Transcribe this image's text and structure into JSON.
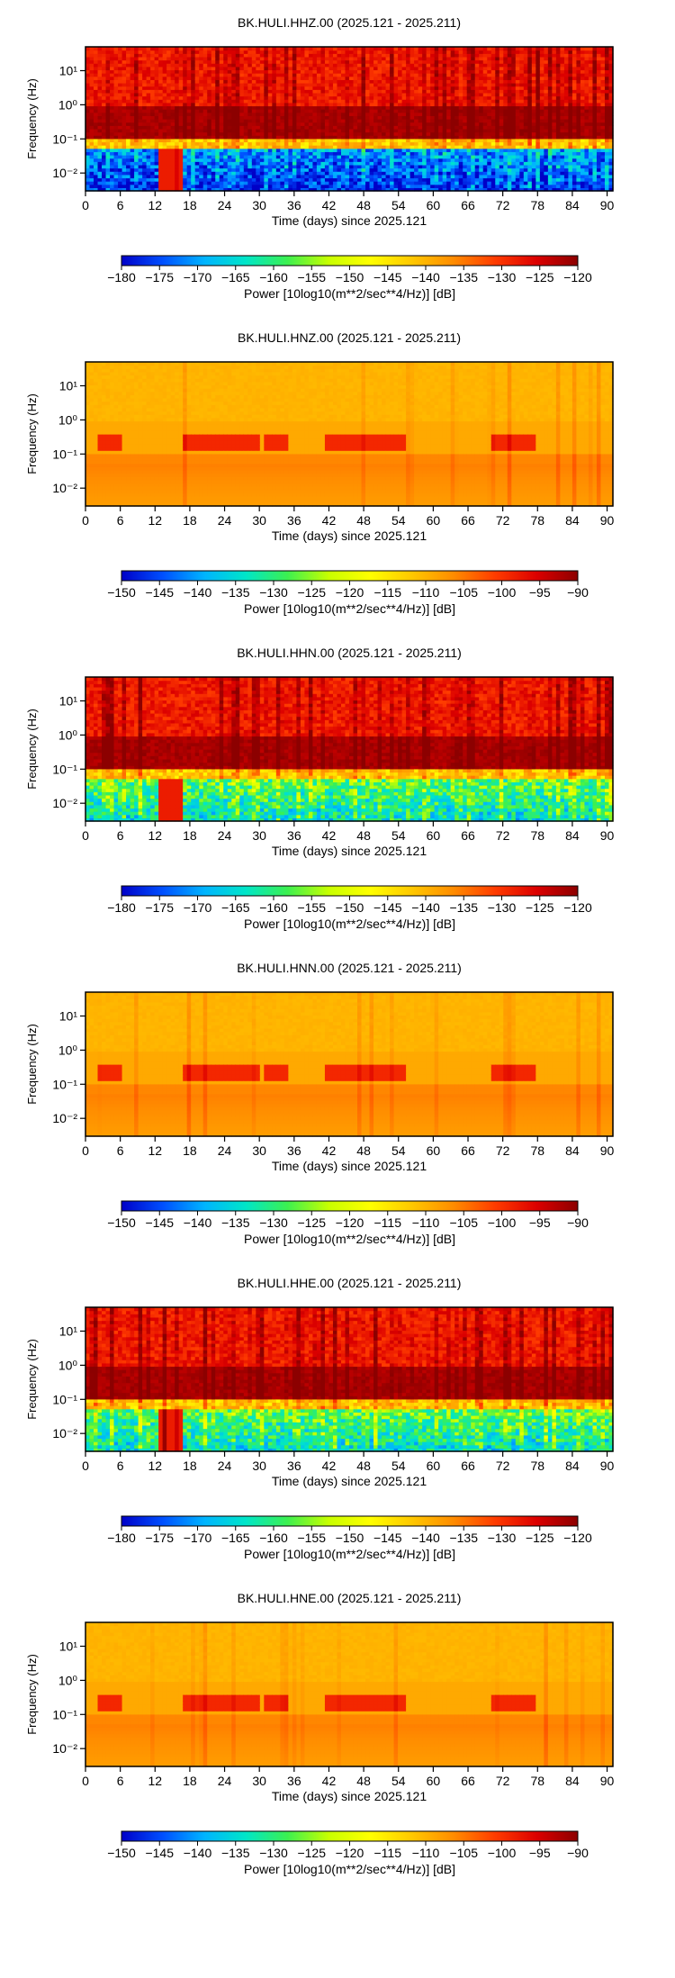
{
  "page": {
    "background": "#ffffff"
  },
  "colormap_stops": [
    "#0000c8",
    "#0050ff",
    "#00b4ff",
    "#00e6c8",
    "#3cf050",
    "#c8ff00",
    "#ffff00",
    "#ffc800",
    "#ff8c00",
    "#ff3c00",
    "#dc0000",
    "#8c0000"
  ],
  "chart_data": [
    {
      "type": "heatmap",
      "title": "BK.HULI.HHZ.00 (2025.121 - 2025.211)",
      "xlabel": "Time (days) since 2025.121",
      "ylabel": "Frequency (Hz)",
      "x_ticks": [
        "0",
        "6",
        "12",
        "18",
        "24",
        "30",
        "36",
        "42",
        "48",
        "54",
        "60",
        "66",
        "72",
        "78",
        "84",
        "90"
      ],
      "x_tick_values": [
        0,
        6,
        12,
        18,
        24,
        30,
        36,
        42,
        48,
        54,
        60,
        66,
        72,
        78,
        84,
        90
      ],
      "xlim": [
        0,
        91
      ],
      "y_scale": "log",
      "y_ticks": [
        "10¹",
        "10⁰",
        "10⁻¹",
        "10⁻²"
      ],
      "y_tick_values": [
        10,
        1,
        0.1,
        0.01
      ],
      "ylim": [
        0.003,
        50
      ],
      "colorbar": {
        "label": "Power [10log10(m**2/sec**4/Hz)] [dB]",
        "ticks": [
          "−180",
          "−175",
          "−170",
          "−165",
          "−160",
          "−155",
          "−150",
          "−145",
          "−140",
          "−135",
          "−130",
          "−125",
          "−120"
        ],
        "range": [
          -180,
          -120
        ]
      },
      "power_db_by_band": {
        "low_freq_below_0.05Hz": -178,
        "microseism_0.1_1Hz": -122,
        "high_freq_above_1Hz": -128
      },
      "style": "broadband"
    },
    {
      "type": "heatmap",
      "title": "BK.HULI.HNZ.00 (2025.121 - 2025.211)",
      "xlabel": "Time (days) since 2025.121",
      "ylabel": "Frequency (Hz)",
      "x_ticks": [
        "0",
        "6",
        "12",
        "18",
        "24",
        "30",
        "36",
        "42",
        "48",
        "54",
        "60",
        "66",
        "72",
        "78",
        "84",
        "90"
      ],
      "x_tick_values": [
        0,
        6,
        12,
        18,
        24,
        30,
        36,
        42,
        48,
        54,
        60,
        66,
        72,
        78,
        84,
        90
      ],
      "xlim": [
        0,
        91
      ],
      "y_scale": "log",
      "y_ticks": [
        "10¹",
        "10⁰",
        "10⁻¹",
        "10⁻²"
      ],
      "y_tick_values": [
        10,
        1,
        0.1,
        0.01
      ],
      "ylim": [
        0.003,
        50
      ],
      "colorbar": {
        "label": "Power [10log10(m**2/sec**4/Hz)] [dB]",
        "ticks": [
          "−150",
          "−145",
          "−140",
          "−135",
          "−130",
          "−125",
          "−120",
          "−115",
          "−110",
          "−105",
          "−100",
          "−95",
          "−90"
        ],
        "range": [
          -150,
          -90
        ]
      },
      "power_db_by_band": {
        "low_freq_below_0.05Hz": -108,
        "microseism_0.1_1Hz": -103,
        "high_freq_above_1Hz": -110
      },
      "style": "strong_motion"
    },
    {
      "type": "heatmap",
      "title": "BK.HULI.HHN.00 (2025.121 - 2025.211)",
      "xlabel": "Time (days) since 2025.121",
      "ylabel": "Frequency (Hz)",
      "x_ticks": [
        "0",
        "6",
        "12",
        "18",
        "24",
        "30",
        "36",
        "42",
        "48",
        "54",
        "60",
        "66",
        "72",
        "78",
        "84",
        "90"
      ],
      "x_tick_values": [
        0,
        6,
        12,
        18,
        24,
        30,
        36,
        42,
        48,
        54,
        60,
        66,
        72,
        78,
        84,
        90
      ],
      "xlim": [
        0,
        91
      ],
      "y_scale": "log",
      "y_ticks": [
        "10¹",
        "10⁰",
        "10⁻¹",
        "10⁻²"
      ],
      "y_tick_values": [
        10,
        1,
        0.1,
        0.01
      ],
      "ylim": [
        0.003,
        50
      ],
      "colorbar": {
        "label": "Power [10log10(m**2/sec**4/Hz)] [dB]",
        "ticks": [
          "−180",
          "−175",
          "−170",
          "−165",
          "−160",
          "−155",
          "−150",
          "−145",
          "−140",
          "−135",
          "−130",
          "−125",
          "−120"
        ],
        "range": [
          -180,
          -120
        ]
      },
      "power_db_by_band": {
        "low_freq_below_0.05Hz": -165,
        "microseism_0.1_1Hz": -122,
        "high_freq_above_1Hz": -128
      },
      "style": "broadband"
    },
    {
      "type": "heatmap",
      "title": "BK.HULI.HNN.00 (2025.121 - 2025.211)",
      "xlabel": "Time (days) since 2025.121",
      "ylabel": "Frequency (Hz)",
      "x_ticks": [
        "0",
        "6",
        "12",
        "18",
        "24",
        "30",
        "36",
        "42",
        "48",
        "54",
        "60",
        "66",
        "72",
        "78",
        "84",
        "90"
      ],
      "x_tick_values": [
        0,
        6,
        12,
        18,
        24,
        30,
        36,
        42,
        48,
        54,
        60,
        66,
        72,
        78,
        84,
        90
      ],
      "xlim": [
        0,
        91
      ],
      "y_scale": "log",
      "y_ticks": [
        "10¹",
        "10⁰",
        "10⁻¹",
        "10⁻²"
      ],
      "y_tick_values": [
        10,
        1,
        0.1,
        0.01
      ],
      "ylim": [
        0.003,
        50
      ],
      "colorbar": {
        "label": "Power [10log10(m**2/sec**4/Hz)] [dB]",
        "ticks": [
          "−150",
          "−145",
          "−140",
          "−135",
          "−130",
          "−125",
          "−120",
          "−115",
          "−110",
          "−105",
          "−100",
          "−95",
          "−90"
        ],
        "range": [
          -150,
          -90
        ]
      },
      "power_db_by_band": {
        "low_freq_below_0.05Hz": -108,
        "microseism_0.1_1Hz": -103,
        "high_freq_above_1Hz": -110
      },
      "style": "strong_motion"
    },
    {
      "type": "heatmap",
      "title": "BK.HULI.HHE.00 (2025.121 - 2025.211)",
      "xlabel": "Time (days) since 2025.121",
      "ylabel": "Frequency (Hz)",
      "x_ticks": [
        "0",
        "6",
        "12",
        "18",
        "24",
        "30",
        "36",
        "42",
        "48",
        "54",
        "60",
        "66",
        "72",
        "78",
        "84",
        "90"
      ],
      "x_tick_values": [
        0,
        6,
        12,
        18,
        24,
        30,
        36,
        42,
        48,
        54,
        60,
        66,
        72,
        78,
        84,
        90
      ],
      "xlim": [
        0,
        91
      ],
      "y_scale": "log",
      "y_ticks": [
        "10¹",
        "10⁰",
        "10⁻¹",
        "10⁻²"
      ],
      "y_tick_values": [
        10,
        1,
        0.1,
        0.01
      ],
      "ylim": [
        0.003,
        50
      ],
      "colorbar": {
        "label": "Power [10log10(m**2/sec**4/Hz)] [dB]",
        "ticks": [
          "−180",
          "−175",
          "−170",
          "−165",
          "−160",
          "−155",
          "−150",
          "−145",
          "−140",
          "−135",
          "−130",
          "−125",
          "−120"
        ],
        "range": [
          -180,
          -120
        ]
      },
      "power_db_by_band": {
        "low_freq_below_0.05Hz": -165,
        "microseism_0.1_1Hz": -122,
        "high_freq_above_1Hz": -128
      },
      "style": "broadband"
    },
    {
      "type": "heatmap",
      "title": "BK.HULI.HNE.00 (2025.121 - 2025.211)",
      "xlabel": "Time (days) since 2025.121",
      "ylabel": "Frequency (Hz)",
      "x_ticks": [
        "0",
        "6",
        "12",
        "18",
        "24",
        "30",
        "36",
        "42",
        "48",
        "54",
        "60",
        "66",
        "72",
        "78",
        "84",
        "90"
      ],
      "x_tick_values": [
        0,
        6,
        12,
        18,
        24,
        30,
        36,
        42,
        48,
        54,
        60,
        66,
        72,
        78,
        84,
        90
      ],
      "xlim": [
        0,
        91
      ],
      "y_scale": "log",
      "y_ticks": [
        "10¹",
        "10⁰",
        "10⁻¹",
        "10⁻²"
      ],
      "y_tick_values": [
        10,
        1,
        0.1,
        0.01
      ],
      "ylim": [
        0.003,
        50
      ],
      "colorbar": {
        "label": "Power [10log10(m**2/sec**4/Hz)] [dB]",
        "ticks": [
          "−150",
          "−145",
          "−140",
          "−135",
          "−130",
          "−125",
          "−120",
          "−115",
          "−110",
          "−105",
          "−100",
          "−95",
          "−90"
        ],
        "range": [
          -150,
          -90
        ]
      },
      "power_db_by_band": {
        "low_freq_below_0.05Hz": -108,
        "microseism_0.1_1Hz": -103,
        "high_freq_above_1Hz": -110
      },
      "style": "strong_motion"
    }
  ]
}
